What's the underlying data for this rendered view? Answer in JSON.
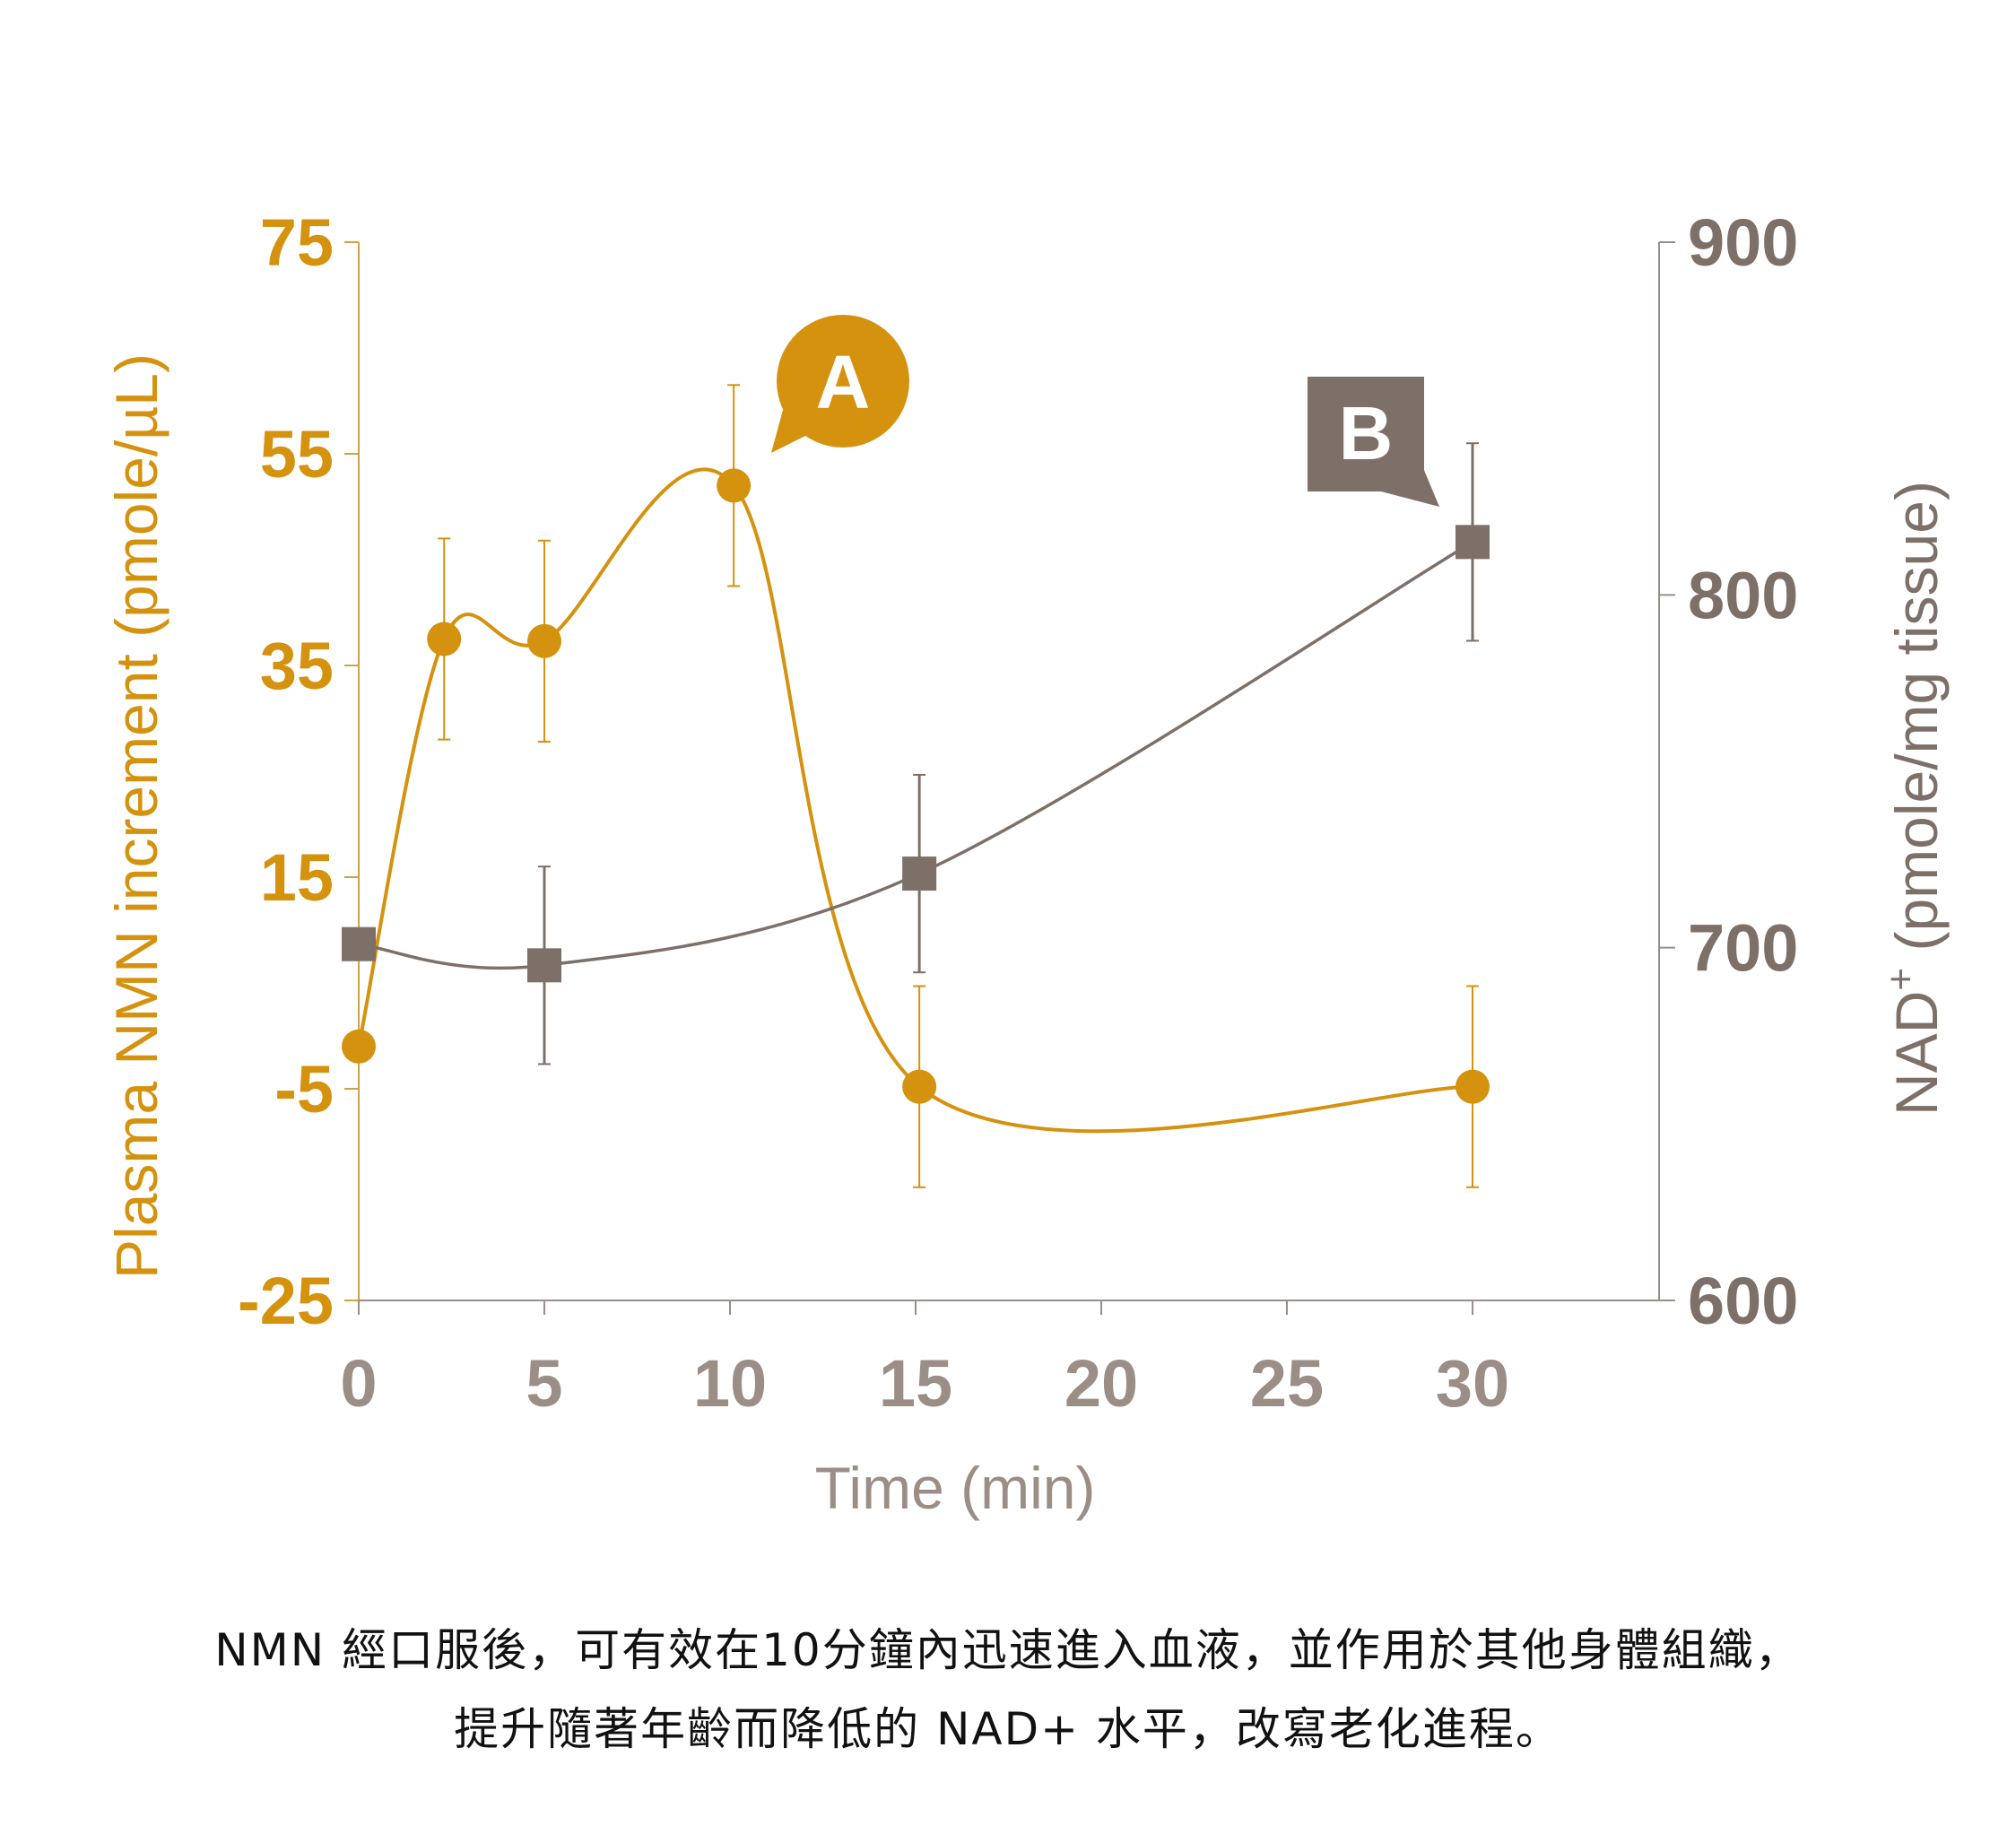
{
  "colors": {
    "nmn": "#D4920F",
    "nad": "#7D7068",
    "axis": "#9A8E86",
    "caption": "#111111"
  },
  "chart_data": {
    "type": "line",
    "title": "",
    "xlabel": "Time (min)",
    "x_ticks": [
      "0",
      "5",
      "10",
      "15",
      "20",
      "25",
      "30"
    ],
    "xlim": [
      0,
      35
    ],
    "y_left": {
      "label": "Plasma NMN increment  (pmole/µL)",
      "ticks": [
        "75",
        "55",
        "35",
        "15",
        "-5",
        "-25"
      ],
      "ylim": [
        -25,
        75
      ],
      "color": "#D4920F"
    },
    "y_right": {
      "label_main": "NAD",
      "label_sup": "+",
      "label_rest": " (pmole/mg tissue)",
      "ticks": [
        "900",
        "800",
        "700",
        "600"
      ],
      "ylim": [
        600,
        900
      ],
      "color": "#7D7068"
    },
    "series": [
      {
        "name": "A",
        "axis": "left",
        "marker": "circle",
        "x": [
          0,
          2.3,
          5,
          10.1,
          15.1,
          30
        ],
        "y": [
          -1,
          37.5,
          37.3,
          52,
          -4.8,
          -4.8
        ],
        "err": [
          0,
          9.5,
          9.5,
          9.5,
          9.5,
          9.5
        ]
      },
      {
        "name": "B",
        "axis": "right",
        "marker": "square",
        "x": [
          0,
          5,
          15.1,
          30
        ],
        "y": [
          701,
          695,
          721,
          815
        ],
        "err": [
          0,
          28,
          28,
          28
        ]
      }
    ],
    "callouts": [
      "A",
      "B"
    ],
    "grid": false
  },
  "caption": {
    "line1": "NMN 經口服後，可有效在10分鐘內迅速進入血液，並作用於其他身體組織，",
    "line2": "提升隨著年齡而降低的 NAD+ 水平，改寫老化進程。"
  }
}
